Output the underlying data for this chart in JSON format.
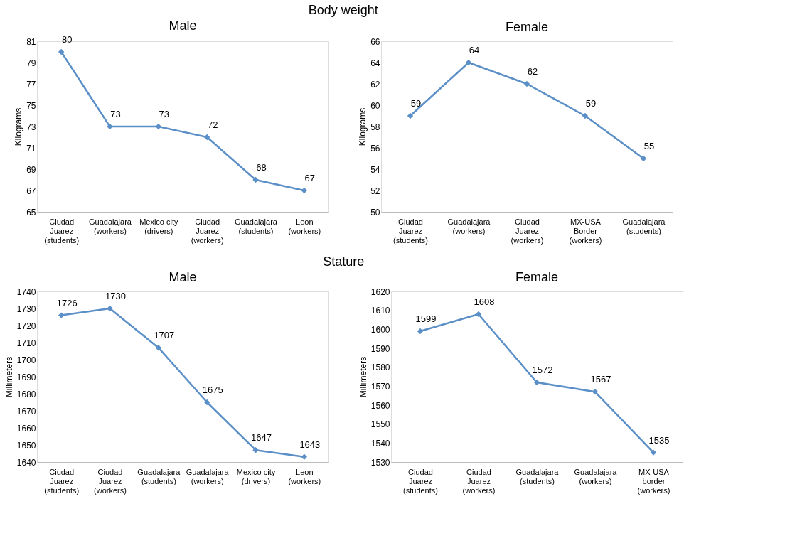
{
  "chart_data": [
    {
      "type": "line",
      "title": "Male",
      "annotations": [
        "Body weight"
      ],
      "ylabel": "Kilograms",
      "categories": [
        "Ciudad Juarez (students)",
        "Guadalajara (workers)",
        "Mexico city (drivers)",
        "Ciudad Juarez (workers)",
        "Guadalajara (students)",
        "Leon (workers)"
      ],
      "series": [
        {
          "color": "#5b8fc7",
          "values": [
            80,
            73,
            73,
            72,
            68,
            67
          ]
        }
      ],
      "ylim": [
        65,
        81
      ],
      "yticks": [
        65,
        67,
        69,
        71,
        73,
        75,
        77,
        79,
        81
      ],
      "data_labels": true,
      "marker": "diamond",
      "grid": false
    },
    {
      "type": "line",
      "title": "Female",
      "ylabel": "Kilograms",
      "categories": [
        "Ciudad Juarez (students)",
        "Guadalajara (workers)",
        "Ciudad Juarez (workers)",
        "MX-USA Border (workers)",
        "Guadalajara (students)"
      ],
      "series": [
        {
          "color": "#5b8fc7",
          "values": [
            59,
            64,
            62,
            59,
            55
          ]
        }
      ],
      "ylim": [
        50,
        66
      ],
      "yticks": [
        50,
        52,
        54,
        56,
        58,
        60,
        62,
        64,
        66
      ],
      "data_labels": true,
      "marker": "diamond",
      "grid": false
    },
    {
      "type": "line",
      "title": "Male",
      "annotations": [
        "Stature"
      ],
      "ylabel": "Millimeters",
      "categories": [
        "Ciudad Juarez (students)",
        "Ciudad Juarez (workers)",
        "Guadalajara (students)",
        "Guadalajara (workers)",
        "Mexico city (drivers)",
        "Leon (workers)"
      ],
      "series": [
        {
          "color": "#5b8fc7",
          "values": [
            1726,
            1730,
            1707,
            1675,
            1647,
            1643
          ]
        }
      ],
      "ylim": [
        1640,
        1740
      ],
      "yticks": [
        1640,
        1650,
        1660,
        1670,
        1680,
        1690,
        1700,
        1710,
        1720,
        1730,
        1740
      ],
      "data_labels": true,
      "marker": "diamond",
      "grid": false
    },
    {
      "type": "line",
      "title": "Female",
      "ylabel": "Millimeters",
      "categories": [
        "Ciudad Juarez (students)",
        "Ciudad Juarez (workers)",
        "Guadalajara (students)",
        "Guadalajara (workers)",
        "MX-USA border (workers)"
      ],
      "series": [
        {
          "color": "#5b8fc7",
          "values": [
            1599,
            1608,
            1572,
            1567,
            1535
          ]
        }
      ],
      "ylim": [
        1530,
        1620
      ],
      "yticks": [
        1530,
        1540,
        1550,
        1560,
        1570,
        1580,
        1590,
        1600,
        1610,
        1620
      ],
      "data_labels": true,
      "marker": "diamond",
      "grid": false
    }
  ]
}
